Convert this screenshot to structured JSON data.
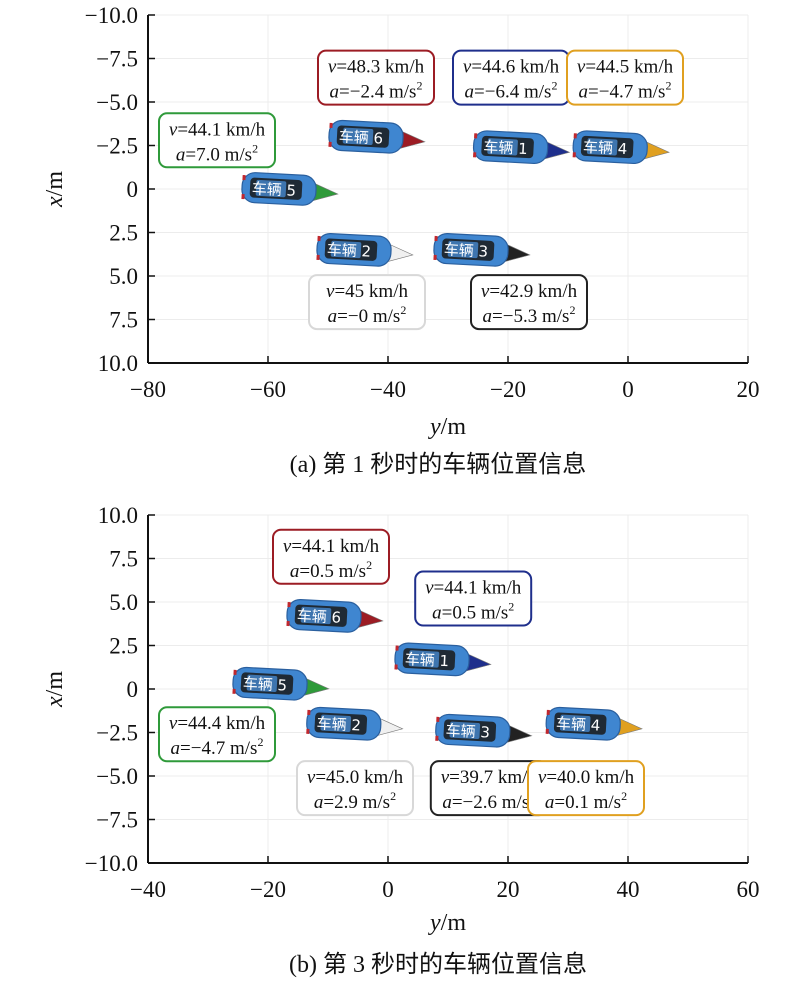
{
  "chart_data": [
    {
      "type": "scatter",
      "title": "",
      "caption": "(a) 第 1 秒时的车辆位置信息",
      "xlabel": "y/m",
      "ylabel": "x/m",
      "xlim": [
        -80,
        20
      ],
      "ylim": [
        -10,
        10
      ],
      "y_inverted": true,
      "x_ticks": [
        "−80",
        "−60",
        "−40",
        "−20",
        "0",
        "20"
      ],
      "x_tick_values": [
        -80,
        -60,
        -40,
        -20,
        0,
        20
      ],
      "y_ticks": [
        "−10.0",
        "−7.5",
        "−5.0",
        "−2.5",
        "0",
        "2.5",
        "5.0",
        "7.5",
        "10.0"
      ],
      "y_tick_values": [
        -10,
        -7.5,
        -5,
        -2.5,
        0,
        2.5,
        5,
        7.5,
        10
      ],
      "grid": true,
      "vehicles": [
        {
          "id": "1",
          "label": "车辆 1",
          "color": "#1f2f8c",
          "y": -19.4,
          "x": -2.4,
          "v": "v=44.6 km/h",
          "a": "a=−6.4 m/s²",
          "ann_y": -19.5,
          "ann_x": -6.4
        },
        {
          "id": "2",
          "label": "车辆 2",
          "color": "#f0f0f0",
          "y": -45.5,
          "x": 3.5,
          "v": "v=45 km/h",
          "a": "a=−0 m/s²",
          "ann_y": -43.5,
          "ann_x": 6.5
        },
        {
          "id": "3",
          "label": "车辆 3",
          "color": "#222222",
          "y": -26.0,
          "x": 3.5,
          "v": "v=42.9 km/h",
          "a": "a=−5.3 m/s²",
          "ann_y": -16.5,
          "ann_x": 6.5
        },
        {
          "id": "4",
          "label": "车辆 4",
          "color": "#e0a020",
          "y": -2.8,
          "x": -2.4,
          "v": "v=44.5 km/h",
          "a": "a=−4.7 m/s²",
          "ann_y": -0.5,
          "ann_x": -6.4
        },
        {
          "id": "5",
          "label": "车辆 5",
          "color": "#2f9a3a",
          "y": -58.0,
          "x": 0.0,
          "v": "v=44.1 km/h",
          "a": "a=7.0 m/s²",
          "ann_y": -68.5,
          "ann_x": -2.8
        },
        {
          "id": "6",
          "label": "车辆 6",
          "color": "#9c1c24",
          "y": -43.5,
          "x": -3.0,
          "v": "v=48.3 km/h",
          "a": "a=−2.4 m/s²",
          "ann_y": -42.0,
          "ann_x": -6.4
        }
      ]
    },
    {
      "type": "scatter",
      "title": "",
      "caption": "(b) 第 3 秒时的车辆位置信息",
      "xlabel": "y/m",
      "ylabel": "x/m",
      "xlim": [
        -40,
        60
      ],
      "ylim": [
        -10,
        10
      ],
      "y_inverted": false,
      "x_ticks": [
        "−40",
        "−20",
        "0",
        "20",
        "40",
        "60"
      ],
      "x_tick_values": [
        -40,
        -20,
        0,
        20,
        40,
        60
      ],
      "y_ticks": [
        "10.0",
        "7.5",
        "5.0",
        "2.5",
        "0",
        "−2.5",
        "−5.0",
        "−7.5",
        "−10.0"
      ],
      "y_tick_values": [
        10,
        7.5,
        5,
        2.5,
        0,
        -2.5,
        -5,
        -7.5,
        -10
      ],
      "grid": true,
      "vehicles": [
        {
          "id": "1",
          "label": "车辆 1",
          "color": "#1f2f8c",
          "y": 7.5,
          "x": 1.7,
          "v": "v=44.1 km/h",
          "a": "a=0.5 m/s²",
          "ann_y": 14.2,
          "ann_x": 5.2
        },
        {
          "id": "2",
          "label": "车辆 2",
          "color": "#f0f0f0",
          "y": -7.2,
          "x": -2.0,
          "v": "v=45.0 km/h",
          "a": "a=2.9 m/s²",
          "ann_y": -5.5,
          "ann_x": -5.7
        },
        {
          "id": "3",
          "label": "车辆 3",
          "color": "#222222",
          "y": 14.3,
          "x": -2.4,
          "v": "v=39.7 km/h",
          "a": "a=−2.6 m/s²",
          "ann_y": 16.8,
          "ann_x": -5.7
        },
        {
          "id": "4",
          "label": "车辆 4",
          "color": "#e0a020",
          "y": 32.7,
          "x": -2.0,
          "v": "v=40.0 km/h",
          "a": "a=0.1 m/s²",
          "ann_y": 33.0,
          "ann_x": -5.7
        },
        {
          "id": "5",
          "label": "车辆 5",
          "color": "#2f9a3a",
          "y": -19.5,
          "x": 0.3,
          "v": "v=44.4 km/h",
          "a": "a=−4.7 m/s²",
          "ann_y": -28.5,
          "ann_x": -2.6
        },
        {
          "id": "6",
          "label": "车辆 6",
          "color": "#9c1c24",
          "y": -10.5,
          "x": 4.2,
          "v": "v=44.1 km/h",
          "a": "a=0.5 m/s²",
          "ann_y": -9.5,
          "ann_x": 7.6
        }
      ]
    }
  ],
  "style": {
    "car_body_color": "#3f86d0",
    "car_window_color": "#1a1a1a",
    "axis_color": "#111111",
    "grid_color": "#ececec"
  }
}
